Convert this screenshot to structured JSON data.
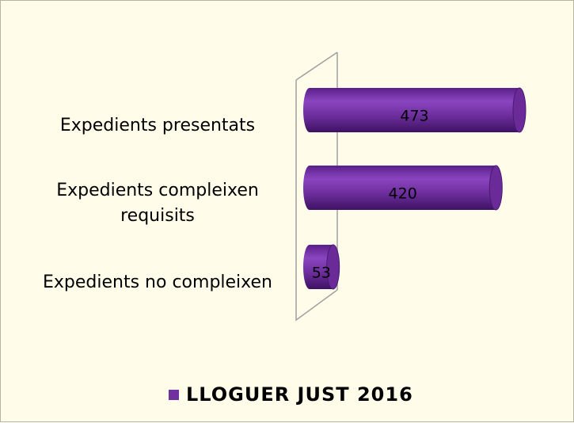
{
  "chart_data": {
    "type": "bar",
    "orientation": "horizontal",
    "categories": [
      "Expedients presentats",
      "Expedients compleixen requisits",
      "Expedients no compleixen"
    ],
    "series": [
      {
        "name": "LLOGUER JUST 2016",
        "color": "#7030a0",
        "values": [
          473,
          420,
          53
        ]
      }
    ],
    "legend": "bottom"
  }
}
